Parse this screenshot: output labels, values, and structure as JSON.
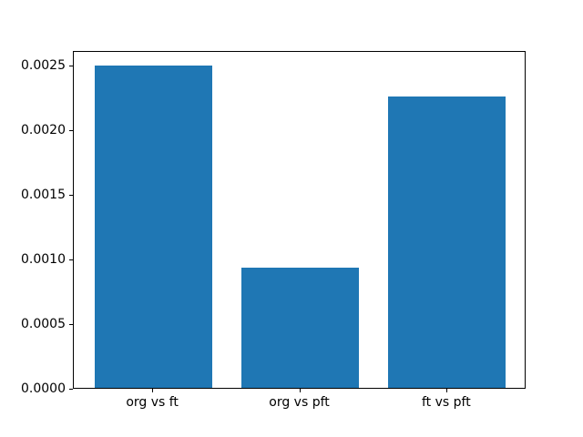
{
  "figure": {
    "background": "#ffffff",
    "text_color": "#000000"
  },
  "chart_data": {
    "type": "bar",
    "title": "",
    "xlabel": "",
    "ylabel": "",
    "categories": [
      "org vs ft",
      "org vs pft",
      "ft vs pft"
    ],
    "values": [
      0.00249,
      0.00093,
      0.00225
    ],
    "x": [
      0,
      1,
      2
    ],
    "bar_color": "#1f77b4",
    "bar_width": 0.8,
    "xlim": [
      -0.54,
      2.54
    ],
    "ylim": [
      0,
      0.00261
    ],
    "yticks": [
      {
        "value": 0.0,
        "label": "0.0000"
      },
      {
        "value": 0.0005,
        "label": "0.0005"
      },
      {
        "value": 0.001,
        "label": "0.0010"
      },
      {
        "value": 0.0015,
        "label": "0.0015"
      },
      {
        "value": 0.002,
        "label": "0.0020"
      },
      {
        "value": 0.0025,
        "label": "0.0025"
      }
    ],
    "grid": false,
    "legend_position": "none"
  }
}
